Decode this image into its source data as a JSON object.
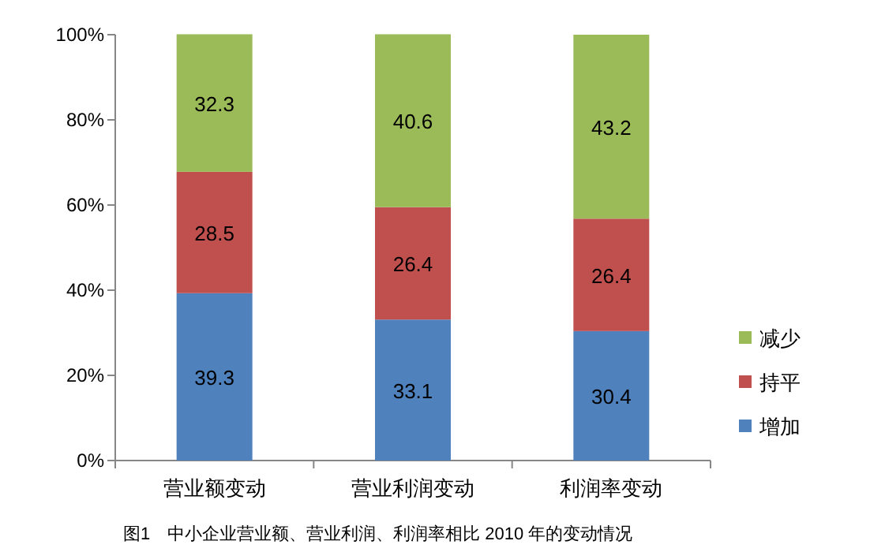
{
  "chart_data": {
    "type": "bar",
    "stacked": true,
    "categories": [
      "营业额变动",
      "营业利润变动",
      "利润率变动"
    ],
    "series": [
      {
        "name": "增加",
        "color": "#4f81bd",
        "values": [
          39.3,
          33.1,
          30.4
        ]
      },
      {
        "name": "持平",
        "color": "#c0504d",
        "values": [
          28.5,
          26.4,
          26.4
        ]
      },
      {
        "name": "减少",
        "color": "#9bbb59",
        "values": [
          32.3,
          40.6,
          43.2
        ]
      }
    ],
    "ylim": [
      0,
      100
    ],
    "yticks": [
      {
        "value": 0,
        "label": "0%"
      },
      {
        "value": 20,
        "label": "20%"
      },
      {
        "value": 40,
        "label": "40%"
      },
      {
        "value": 60,
        "label": "60%"
      },
      {
        "value": 80,
        "label": "80%"
      },
      {
        "value": 100,
        "label": "100%"
      }
    ],
    "data_labels": true,
    "legend": "right",
    "grid": false,
    "annotations": [
      "图1　中小企业营业额、营业利润、利润率相比 2010 年的变动情况"
    ]
  }
}
